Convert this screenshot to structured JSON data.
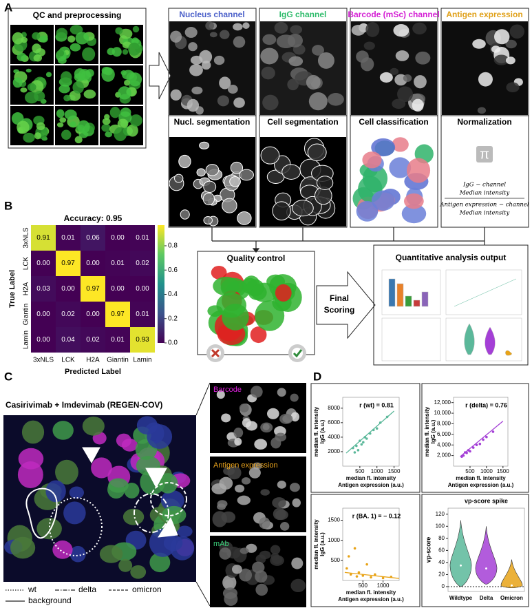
{
  "panel_labels": [
    "A",
    "B",
    "C",
    "D"
  ],
  "panel_a": {
    "qc_title": "QC and preprocessing",
    "channels": [
      "Nucleus channel",
      "IgG channel",
      "Barcode (mSc) channel",
      "Antigen expression"
    ],
    "steps": [
      "Nucl. segmentation",
      "Cell segmentation",
      "Cell classification",
      "Normalization"
    ],
    "pi": "π",
    "formula_numerator": [
      "IgG − channel",
      "Median intensity"
    ],
    "formula_denominator": [
      "Antigen  expression − channel",
      "Median intensity"
    ],
    "quality_control": "Quality control",
    "final_scoring": [
      "Final",
      "Scoring"
    ],
    "output_title": "Quantitative analysis output"
  },
  "panel_c": {
    "title": "Casirivimab + Imdevimab (REGEN-COV)",
    "insets": [
      "Barcode",
      "Antigen expression",
      "mAb"
    ],
    "legend": [
      "wt",
      "delta",
      "omicron",
      "background"
    ]
  },
  "chart_data": [
    {
      "type": "heatmap",
      "title": "Accuracy: 0.95",
      "x_label": "Predicted Label",
      "y_label": "True Label",
      "categories": [
        "3xNLS",
        "LCK",
        "H2A",
        "Giantin",
        "Lamin"
      ],
      "values": [
        [
          0.91,
          0.01,
          0.06,
          0,
          0.01
        ],
        [
          0,
          0.97,
          0,
          0.01,
          0.02
        ],
        [
          0.03,
          0,
          0.97,
          0,
          0
        ],
        [
          0,
          0.02,
          0,
          0.97,
          0.01
        ],
        [
          0,
          0.04,
          0.02,
          0.01,
          0.93
        ]
      ],
      "value_labels": [
        [
          "0.91",
          "0.01",
          "0.06",
          "0.00",
          "0.01"
        ],
        [
          "0.00",
          "0.97",
          "0.00",
          "0.01",
          "0.02"
        ],
        [
          "0.03",
          "0.00",
          "0.97",
          "0.00",
          "0.00"
        ],
        [
          "0.00",
          "0.02",
          "0.00",
          "0.97",
          "0.01"
        ],
        [
          "0.00",
          "0.04",
          "0.02",
          "0.01",
          "0.93"
        ]
      ],
      "colormap": [
        "#440154",
        "#3b528b",
        "#21918c",
        "#5ec962",
        "#fde725"
      ],
      "clim": [
        0,
        0.97
      ],
      "cticks": [
        {
          "value": 0,
          "label": "0.0"
        },
        {
          "value": 0.2,
          "label": "0.2"
        },
        {
          "value": 0.4,
          "label": "0.4"
        },
        {
          "value": 0.6,
          "label": "0.6"
        },
        {
          "value": 0.8,
          "label": "0.8"
        }
      ]
    },
    {
      "type": "scatter",
      "title": "r (wt) = 0.81",
      "color": "#5bb89a",
      "x_label": [
        "median fl. intensity",
        "Antigen expression (a.u.)"
      ],
      "y_label": [
        "median fl. intensity",
        "IgG (a.u.)"
      ],
      "x": [
        300,
        350,
        400,
        450,
        500,
        550,
        600,
        650,
        700,
        800,
        900,
        1000,
        1100,
        1300
      ],
      "y": [
        2500,
        1900,
        2800,
        2200,
        3500,
        3000,
        3300,
        4000,
        3800,
        4500,
        5000,
        5200,
        6000,
        6800
      ],
      "fit": {
        "x": [
          100,
          1500
        ],
        "y": [
          1800,
          7600
        ]
      },
      "xlim": [
        0,
        1650
      ],
      "ylim": [
        0,
        9500
      ],
      "xticks": [
        500,
        1000,
        1500
      ],
      "yticks": [
        2000,
        4000,
        6000,
        8000
      ]
    },
    {
      "type": "scatter",
      "title": "r (delta) = 0.76",
      "color": "#a43fd6",
      "x_label": [
        "median fl. intensity",
        "Antigen expression (a.u.)"
      ],
      "y_label": [
        "median fl. intensity",
        "IgG (a.u.)"
      ],
      "x": [
        250,
        300,
        350,
        400,
        450,
        500,
        600,
        700,
        800,
        900,
        1000,
        1200
      ],
      "y": [
        1800,
        2000,
        2600,
        2500,
        3000,
        2800,
        3500,
        4000,
        4200,
        5000,
        5500,
        6500
      ],
      "fit": {
        "x": [
          200,
          1500
        ],
        "y": [
          1800,
          8500
        ]
      },
      "xlim": [
        0,
        1650
      ],
      "ylim": [
        0,
        13000
      ],
      "xticks": [
        500,
        1000,
        1500
      ],
      "yticks": [
        {
          "value": 2000,
          "label": "2,000"
        },
        {
          "value": 4000,
          "label": "4,000"
        },
        {
          "value": 6000,
          "label": "6,000"
        },
        {
          "value": 8000,
          "label": "8,000"
        },
        {
          "value": 10000,
          "label": "10,000"
        },
        {
          "value": 12000,
          "label": "12,000"
        }
      ]
    },
    {
      "type": "scatter",
      "title": "r (BA. 1) = − 0.12",
      "color": "#e8a317",
      "x_label": [
        "median fl. intensity",
        "Antigen expression (a.u.)"
      ],
      "y_label": [
        "median fl. intensity",
        "IgG (a.u.)"
      ],
      "x": [
        100,
        150,
        200,
        300,
        350,
        400,
        500,
        600,
        700,
        800,
        1000,
        1200
      ],
      "y": [
        300,
        600,
        150,
        800,
        100,
        200,
        120,
        400,
        80,
        150,
        60,
        90
      ],
      "fit": {
        "x": [
          50,
          1400
        ],
        "y": [
          200,
          50
        ]
      },
      "xlim": [
        0,
        1400
      ],
      "ylim": [
        0,
        1800
      ],
      "xticks": [
        500,
        1000
      ],
      "yticks": [
        500,
        1000,
        1500
      ]
    },
    {
      "type": "violin",
      "title": "vp-score spike",
      "y_label": "vp-score",
      "categories": [
        "Wildtype",
        "Delta",
        "Omicron"
      ],
      "colors": [
        "#5bb89a",
        "#a43fd6",
        "#e8a317"
      ],
      "medians": [
        35,
        30,
        2
      ],
      "mins": [
        0,
        4,
        -2
      ],
      "maxs": [
        110,
        100,
        45
      ],
      "hline": 0,
      "ylim": [
        -8,
        130
      ],
      "yticks": [
        0,
        20,
        40,
        60,
        80,
        100,
        120
      ]
    }
  ]
}
